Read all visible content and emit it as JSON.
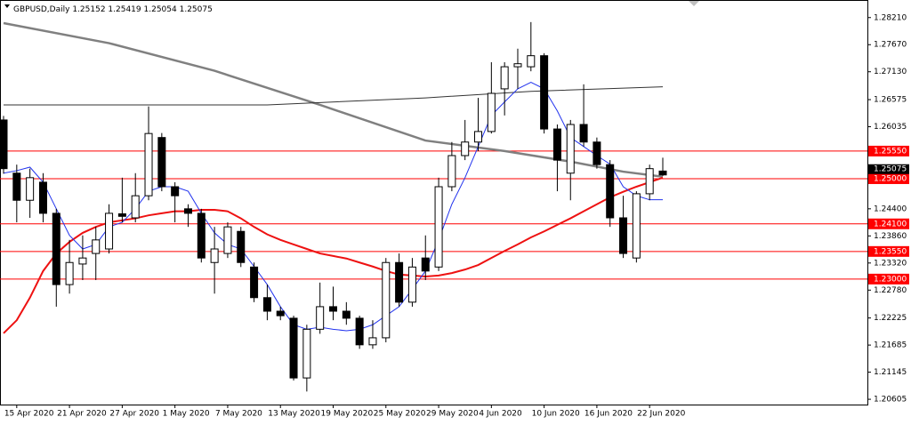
{
  "chart_data": {
    "type": "candlestick",
    "title": "GBPUSD,Daily",
    "categories": [
      null,
      "15 Apr 2020",
      null,
      null,
      null,
      "21 Apr 2020",
      null,
      null,
      null,
      "27 Apr 2020",
      null,
      null,
      null,
      "1 May 2020",
      null,
      null,
      null,
      "7 May 2020",
      null,
      null,
      null,
      "13 May 2020",
      null,
      null,
      null,
      "19 May 2020",
      null,
      null,
      null,
      "25 May 2020",
      null,
      null,
      null,
      "29 May 2020",
      null,
      null,
      null,
      "4 Jun 2020",
      null,
      null,
      null,
      "10 Jun 2020",
      null,
      null,
      null,
      "16 Jun 2020",
      null,
      null,
      null,
      "22 Jun 2020",
      null
    ],
    "open": [
      1.2617,
      1.2511,
      1.2457,
      1.2493,
      1.2431,
      1.2289,
      1.233,
      1.2351,
      1.236,
      1.243,
      1.2422,
      1.2466,
      1.2582,
      1.2484,
      1.244,
      1.2431,
      1.2333,
      1.2351,
      1.2395,
      1.2324,
      1.2263,
      1.2236,
      1.2222,
      1.2103,
      1.22,
      1.2245,
      1.2236,
      1.2222,
      1.2169,
      1.2183,
      1.2333,
      1.2254,
      1.2342,
      1.2324,
      1.2484,
      1.2546,
      1.2573,
      1.2594,
      1.2679,
      1.2723,
      1.2723,
      1.2745,
      1.2599,
      1.2511,
      1.2608,
      1.2573,
      1.2528,
      1.2422,
      1.2342,
      1.247,
      1.25152
    ],
    "high": [
      1.2625,
      1.2528,
      1.252,
      1.2511,
      1.244,
      1.2378,
      1.2387,
      1.2404,
      1.2449,
      1.2502,
      1.2511,
      1.2644,
      1.2591,
      1.2493,
      1.2449,
      1.244,
      1.2404,
      1.2413,
      1.2404,
      1.2333,
      1.2289,
      1.2245,
      1.2227,
      1.2209,
      1.2293,
      1.2285,
      1.2254,
      1.2227,
      1.2218,
      1.2342,
      1.2351,
      1.2342,
      1.2387,
      1.2502,
      1.2573,
      1.2617,
      1.2661,
      1.2732,
      1.2732,
      1.2759,
      1.2812,
      1.275,
      1.2608,
      1.2617,
      1.2688,
      1.2582,
      1.2537,
      1.2466,
      1.2475,
      1.2528,
      1.25419
    ],
    "low": [
      1.251,
      1.2413,
      1.2422,
      1.2413,
      1.2245,
      1.2271,
      1.2298,
      1.2298,
      1.2351,
      1.2413,
      1.2413,
      1.2457,
      1.2475,
      1.2413,
      1.2404,
      1.2333,
      1.2271,
      1.2342,
      1.2324,
      1.2254,
      1.2218,
      1.2218,
      1.2098,
      1.2076,
      1.2191,
      1.2218,
      1.2209,
      1.2161,
      1.2161,
      1.2174,
      1.2245,
      1.2245,
      1.2298,
      1.2316,
      1.2475,
      1.2537,
      1.2555,
      1.259,
      1.2626,
      1.2679,
      1.2714,
      1.259,
      1.2475,
      1.2457,
      1.2564,
      1.252,
      1.2404,
      1.2342,
      1.2333,
      1.2457,
      1.25054
    ],
    "close": [
      1.252,
      1.2457,
      1.2502,
      1.2431,
      1.2289,
      1.2333,
      1.2342,
      1.2378,
      1.2431,
      1.2425,
      1.2466,
      1.259,
      1.2484,
      1.2466,
      1.2431,
      1.2342,
      1.236,
      1.2404,
      1.2333,
      1.2263,
      1.2236,
      1.2227,
      1.2103,
      1.22,
      1.2245,
      1.2236,
      1.2222,
      1.2169,
      1.2183,
      1.2333,
      1.2254,
      1.2324,
      1.2316,
      1.2484,
      1.2546,
      1.2573,
      1.2594,
      1.267,
      1.2723,
      1.2729,
      1.2745,
      1.2599,
      1.2537,
      1.2608,
      1.2573,
      1.2528,
      1.2422,
      1.2351,
      1.247,
      1.252,
      1.25075
    ],
    "lines": [
      {
        "color": "#808080",
        "width": 2.5,
        "x": [
          0,
          8,
          16,
          24,
          32,
          38,
          43,
          47,
          50
        ],
        "values": [
          1.281,
          1.277,
          1.2715,
          1.2647,
          1.2576,
          1.2555,
          1.2534,
          1.2514,
          1.2504
        ]
      },
      {
        "color": "#333333",
        "width": 1,
        "x": [
          0,
          20,
          32,
          40,
          50
        ],
        "values": [
          1.2647,
          1.2647,
          1.2661,
          1.2674,
          1.2683
        ]
      },
      {
        "color": "#ee1111",
        "width": 2,
        "values": [
          1.2192,
          1.2218,
          1.2263,
          1.2316,
          1.2351,
          1.2374,
          1.2392,
          1.2404,
          1.2413,
          1.2417,
          1.2421,
          1.2427,
          1.2431,
          1.2435,
          1.2435,
          1.2438,
          1.2438,
          1.2435,
          1.2421,
          1.2404,
          1.2389,
          1.2378,
          1.2369,
          1.236,
          1.2351,
          1.2346,
          1.2341,
          1.2333,
          1.2325,
          1.2316,
          1.2309,
          1.2307,
          1.2305,
          1.2307,
          1.2312,
          1.2319,
          1.2328,
          1.2342,
          1.2356,
          1.2369,
          1.2383,
          1.2395,
          1.2408,
          1.2421,
          1.2435,
          1.2449,
          1.2463,
          1.2474,
          1.2484,
          1.2493,
          1.2502
        ]
      },
      {
        "color": "#2233ee",
        "width": 1,
        "values": [
          1.2511,
          1.2516,
          1.2523,
          1.2493,
          1.244,
          1.2387,
          1.236,
          1.2369,
          1.2404,
          1.2413,
          1.244,
          1.2475,
          1.2484,
          1.2484,
          1.2475,
          1.2431,
          1.2392,
          1.2369,
          1.236,
          1.2325,
          1.2289,
          1.2245,
          1.2209,
          1.22,
          1.2204,
          1.22,
          1.2197,
          1.22,
          1.2209,
          1.2227,
          1.2245,
          1.228,
          1.2316,
          1.2378,
          1.2449,
          1.2502,
          1.2564,
          1.2626,
          1.2653,
          1.2679,
          1.2692,
          1.2679,
          1.2635,
          1.2582,
          1.2564,
          1.2546,
          1.2529,
          1.2484,
          1.2466,
          1.2458,
          1.2458
        ]
      }
    ],
    "hlines_color": "#ff0000",
    "hlines": [
      {
        "value": 1.2555,
        "label": "1.25550"
      },
      {
        "value": 1.25,
        "label": "1.25000"
      },
      {
        "value": 1.241,
        "label": "1.24100"
      },
      {
        "value": 1.2355,
        "label": "1.23550"
      },
      {
        "value": 1.23,
        "label": "1.23000"
      }
    ],
    "ylim": [
      1.205,
      1.2856
    ],
    "yticks": [
      {
        "value": 1.2821,
        "label": "1.28210"
      },
      {
        "value": 1.2767,
        "label": "1.27670"
      },
      {
        "value": 1.2713,
        "label": "1.27130"
      },
      1.26575,
      1.26035,
      {
        "value": 1.244,
        "label": "1.24400"
      },
      {
        "value": 1.2386,
        "label": "1.23860"
      },
      {
        "value": 1.2332,
        "label": "1.23320"
      },
      {
        "value": 1.2278,
        "label": "1.22780"
      },
      1.22225,
      1.21685,
      1.21145,
      1.20605
    ]
  }
}
